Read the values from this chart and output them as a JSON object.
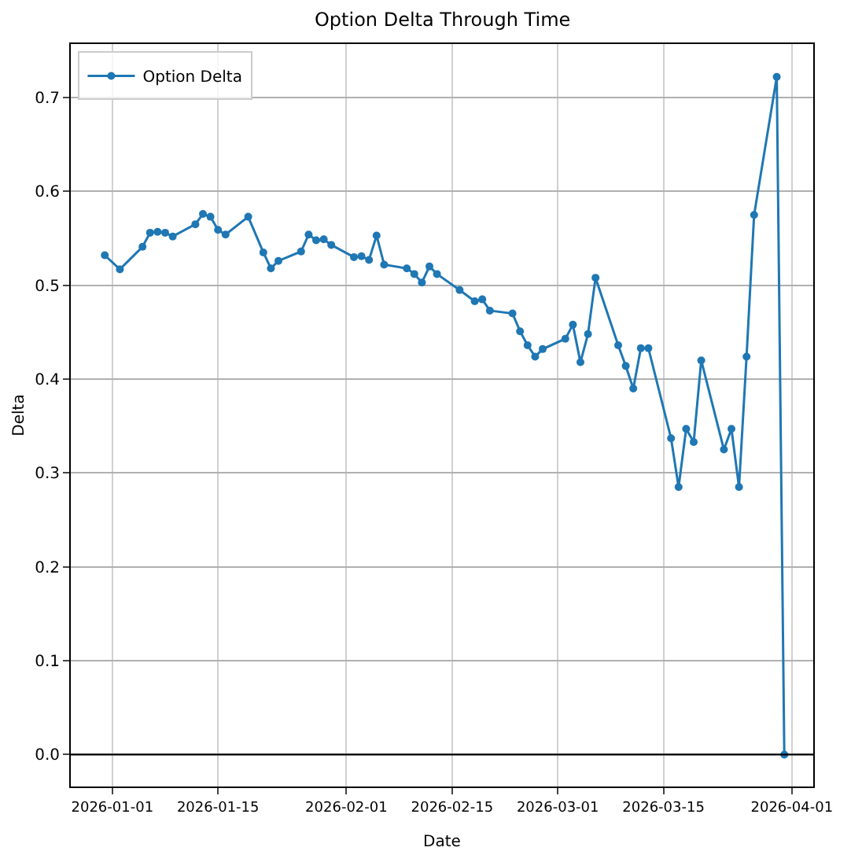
{
  "chart_data": {
    "type": "line",
    "title": "Option Delta Through Time",
    "xlabel": "Date",
    "ylabel": "Delta",
    "x": [
      "2025-12-31",
      "2026-01-02",
      "2026-01-05",
      "2026-01-06",
      "2026-01-07",
      "2026-01-08",
      "2026-01-09",
      "2026-01-12",
      "2026-01-13",
      "2026-01-14",
      "2026-01-15",
      "2026-01-16",
      "2026-01-19",
      "2026-01-21",
      "2026-01-22",
      "2026-01-23",
      "2026-01-26",
      "2026-01-27",
      "2026-01-28",
      "2026-01-29",
      "2026-01-30",
      "2026-02-02",
      "2026-02-03",
      "2026-02-04",
      "2026-02-05",
      "2026-02-06",
      "2026-02-09",
      "2026-02-10",
      "2026-02-11",
      "2026-02-12",
      "2026-02-13",
      "2026-02-16",
      "2026-02-18",
      "2026-02-19",
      "2026-02-20",
      "2026-02-23",
      "2026-02-24",
      "2026-02-25",
      "2026-02-26",
      "2026-02-27",
      "2026-03-02",
      "2026-03-03",
      "2026-03-04",
      "2026-03-05",
      "2026-03-06",
      "2026-03-09",
      "2026-03-10",
      "2026-03-11",
      "2026-03-12",
      "2026-03-13",
      "2026-03-16",
      "2026-03-17",
      "2026-03-18",
      "2026-03-19",
      "2026-03-20",
      "2026-03-23",
      "2026-03-24",
      "2026-03-25",
      "2026-03-26",
      "2026-03-27",
      "2026-03-30",
      "2026-03-31"
    ],
    "series": [
      {
        "name": "Option Delta",
        "color": "#1f77b4",
        "values": [
          0.532,
          0.517,
          0.541,
          0.556,
          0.557,
          0.556,
          0.552,
          0.565,
          0.576,
          0.573,
          0.559,
          0.554,
          0.573,
          0.535,
          0.518,
          0.526,
          0.536,
          0.554,
          0.548,
          0.549,
          0.543,
          0.53,
          0.531,
          0.527,
          0.553,
          0.522,
          0.518,
          0.512,
          0.503,
          0.52,
          0.512,
          0.495,
          0.483,
          0.485,
          0.473,
          0.47,
          0.451,
          0.436,
          0.424,
          0.432,
          0.443,
          0.458,
          0.418,
          0.448,
          0.508,
          0.436,
          0.414,
          0.39,
          0.433,
          0.433,
          0.337,
          0.285,
          0.347,
          0.333,
          0.42,
          0.325,
          0.347,
          0.285,
          0.424,
          0.575,
          0.722,
          0
        ]
      }
    ],
    "xlim": [
      "2025-12-26T12:00",
      "2026-04-03T20:00"
    ],
    "xticks": [
      "2026-01-01",
      "2026-01-15",
      "2026-02-01",
      "2026-02-15",
      "2026-03-01",
      "2026-03-15",
      "2026-04-01"
    ],
    "ylim": [
      -0.034,
      0.757
    ],
    "yticks": [
      {
        "value": 0,
        "label": "0.0"
      },
      {
        "value": 0.1,
        "label": "0.1"
      },
      {
        "value": 0.2,
        "label": "0.2"
      },
      {
        "value": 0.3,
        "label": "0.3"
      },
      {
        "value": 0.4,
        "label": "0.4"
      },
      {
        "value": 0.5,
        "label": "0.5"
      },
      {
        "value": 0.6,
        "label": "0.6"
      },
      {
        "value": 0.7,
        "label": "0.7"
      }
    ],
    "ref_lines": [
      {
        "axis": "y",
        "value": 0,
        "color": "#000000"
      }
    ],
    "grid": true,
    "legend": "top left",
    "marker": "circle",
    "line_style": "solid"
  }
}
